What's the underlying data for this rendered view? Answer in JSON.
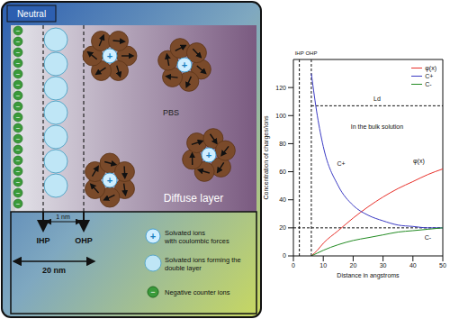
{
  "diagram": {
    "neutral": "Neutral",
    "pbs": "PBS",
    "diffuse_layer": "Diffuse layer",
    "ihp": "IHP",
    "ohp": "OHP",
    "gap": "1 nm",
    "width": "20 nm",
    "plus_sign": "+",
    "minus_sign": "−",
    "legend": [
      {
        "lines": [
          "Solvated ions",
          "with coulombic forces"
        ]
      },
      {
        "lines": [
          "Solvated ions forming the",
          "double layer"
        ]
      },
      {
        "lines": [
          "Negative counter ions"
        ]
      }
    ]
  },
  "chart_data": {
    "type": "line",
    "x_label": "Distance in angstroms",
    "y_label": "Concentration of charges/ions",
    "xlim": [
      0,
      50
    ],
    "ylim": [
      0,
      140
    ],
    "xticks": [
      0,
      10,
      20,
      30,
      40,
      50
    ],
    "yticks": [
      0,
      20,
      40,
      60,
      80,
      100,
      120
    ],
    "grid": false,
    "legend": "upper right",
    "x": [
      6,
      8,
      10,
      15,
      20,
      25,
      30,
      35,
      40,
      45,
      50
    ],
    "series": [
      {
        "name": "φ(x)",
        "color": "#e8302a",
        "values": [
          0,
          4,
          9,
          18,
          27,
          35,
          42,
          48,
          53,
          58,
          62
        ]
      },
      {
        "name": "C+",
        "color": "#3b3bc4",
        "values": [
          130,
          100,
          78,
          50,
          36,
          29,
          25,
          22,
          21,
          20,
          20
        ]
      },
      {
        "name": "C-",
        "color": "#228b22",
        "values": [
          0,
          2,
          4,
          8,
          11,
          13,
          15,
          17,
          18,
          19,
          20
        ]
      }
    ],
    "reference_lines": [
      {
        "x": 2,
        "label": "IHP"
      },
      {
        "x": 6,
        "label": "OHP"
      },
      {
        "y": 20
      }
    ],
    "span": {
      "label": "Ld",
      "x": [
        6,
        50
      ],
      "y": 107
    },
    "annotations": [
      {
        "text": "C+",
        "x": 16,
        "y": 66
      },
      {
        "text": "φ(x)",
        "x": 42,
        "y": 68
      },
      {
        "text": "C-",
        "x": 45,
        "y": 13
      },
      {
        "text": "In the bulk solution",
        "x": 28,
        "y": 92
      }
    ]
  }
}
